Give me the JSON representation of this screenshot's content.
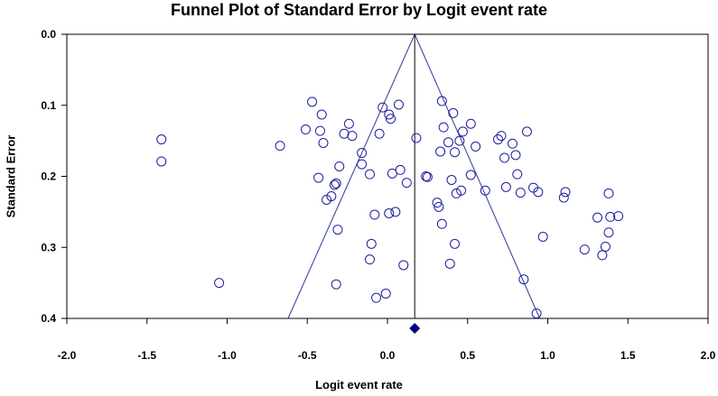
{
  "chart_data": {
    "type": "scatter",
    "title": "Funnel Plot of Standard Error by Logit event rate",
    "xlabel": "Logit event rate",
    "ylabel": "Standard Error",
    "xlim": [
      -2.0,
      2.0
    ],
    "ylim": [
      0.0,
      0.4
    ],
    "y_inverted": true,
    "x_ticks": [
      "-2.0",
      "-1.5",
      "-1.0",
      "-0.5",
      "0.0",
      "0.5",
      "1.0",
      "1.5",
      "2.0"
    ],
    "y_ticks": [
      "0.0",
      "0.1",
      "0.2",
      "0.3",
      "0.4"
    ],
    "grid": false,
    "colors": {
      "marker": "#1f1f9f",
      "lines": "#2e3a9e",
      "summary": "#000080",
      "axis": "#000000"
    },
    "summary_estimate": 0.17,
    "funnel": {
      "apex": [
        0.17,
        0.0
      ],
      "left_base": [
        -0.62,
        0.4
      ],
      "right_base": [
        0.95,
        0.4
      ]
    },
    "points": [
      {
        "x": -1.41,
        "y": 0.148
      },
      {
        "x": -1.41,
        "y": 0.179
      },
      {
        "x": -1.05,
        "y": 0.35
      },
      {
        "x": -0.67,
        "y": 0.157
      },
      {
        "x": -0.47,
        "y": 0.095
      },
      {
        "x": -0.51,
        "y": 0.134
      },
      {
        "x": -0.41,
        "y": 0.113
      },
      {
        "x": -0.42,
        "y": 0.136
      },
      {
        "x": -0.4,
        "y": 0.153
      },
      {
        "x": -0.43,
        "y": 0.202
      },
      {
        "x": -0.38,
        "y": 0.233
      },
      {
        "x": -0.35,
        "y": 0.228
      },
      {
        "x": -0.33,
        "y": 0.212
      },
      {
        "x": -0.32,
        "y": 0.21
      },
      {
        "x": -0.3,
        "y": 0.186
      },
      {
        "x": -0.31,
        "y": 0.275
      },
      {
        "x": -0.32,
        "y": 0.352
      },
      {
        "x": -0.27,
        "y": 0.14
      },
      {
        "x": -0.24,
        "y": 0.126
      },
      {
        "x": -0.22,
        "y": 0.143
      },
      {
        "x": -0.16,
        "y": 0.167
      },
      {
        "x": -0.16,
        "y": 0.183
      },
      {
        "x": -0.11,
        "y": 0.197
      },
      {
        "x": -0.1,
        "y": 0.295
      },
      {
        "x": -0.11,
        "y": 0.317
      },
      {
        "x": -0.07,
        "y": 0.371
      },
      {
        "x": -0.08,
        "y": 0.254
      },
      {
        "x": -0.05,
        "y": 0.14
      },
      {
        "x": -0.03,
        "y": 0.103
      },
      {
        "x": -0.01,
        "y": 0.365
      },
      {
        "x": 0.01,
        "y": 0.113
      },
      {
        "x": 0.02,
        "y": 0.119
      },
      {
        "x": 0.01,
        "y": 0.252
      },
      {
        "x": 0.03,
        "y": 0.196
      },
      {
        "x": 0.05,
        "y": 0.25
      },
      {
        "x": 0.07,
        "y": 0.099
      },
      {
        "x": 0.08,
        "y": 0.191
      },
      {
        "x": 0.1,
        "y": 0.325
      },
      {
        "x": 0.12,
        "y": 0.209
      },
      {
        "x": 0.18,
        "y": 0.146
      },
      {
        "x": 0.24,
        "y": 0.2
      },
      {
        "x": 0.25,
        "y": 0.201
      },
      {
        "x": 0.31,
        "y": 0.237
      },
      {
        "x": 0.32,
        "y": 0.243
      },
      {
        "x": 0.34,
        "y": 0.267
      },
      {
        "x": 0.33,
        "y": 0.165
      },
      {
        "x": 0.34,
        "y": 0.094
      },
      {
        "x": 0.35,
        "y": 0.131
      },
      {
        "x": 0.38,
        "y": 0.152
      },
      {
        "x": 0.39,
        "y": 0.323
      },
      {
        "x": 0.4,
        "y": 0.205
      },
      {
        "x": 0.41,
        "y": 0.111
      },
      {
        "x": 0.42,
        "y": 0.295
      },
      {
        "x": 0.42,
        "y": 0.166
      },
      {
        "x": 0.43,
        "y": 0.224
      },
      {
        "x": 0.45,
        "y": 0.15
      },
      {
        "x": 0.46,
        "y": 0.22
      },
      {
        "x": 0.47,
        "y": 0.137
      },
      {
        "x": 0.52,
        "y": 0.126
      },
      {
        "x": 0.52,
        "y": 0.198
      },
      {
        "x": 0.55,
        "y": 0.158
      },
      {
        "x": 0.61,
        "y": 0.22
      },
      {
        "x": 0.69,
        "y": 0.148
      },
      {
        "x": 0.71,
        "y": 0.143
      },
      {
        "x": 0.73,
        "y": 0.174
      },
      {
        "x": 0.74,
        "y": 0.215
      },
      {
        "x": 0.78,
        "y": 0.154
      },
      {
        "x": 0.8,
        "y": 0.17
      },
      {
        "x": 0.81,
        "y": 0.197
      },
      {
        "x": 0.83,
        "y": 0.223
      },
      {
        "x": 0.85,
        "y": 0.345
      },
      {
        "x": 0.87,
        "y": 0.137
      },
      {
        "x": 0.91,
        "y": 0.216
      },
      {
        "x": 0.94,
        "y": 0.222
      },
      {
        "x": 0.93,
        "y": 0.393
      },
      {
        "x": 0.97,
        "y": 0.285
      },
      {
        "x": 1.1,
        "y": 0.23
      },
      {
        "x": 1.11,
        "y": 0.222
      },
      {
        "x": 1.23,
        "y": 0.303
      },
      {
        "x": 1.31,
        "y": 0.258
      },
      {
        "x": 1.34,
        "y": 0.311
      },
      {
        "x": 1.36,
        "y": 0.299
      },
      {
        "x": 1.38,
        "y": 0.224
      },
      {
        "x": 1.38,
        "y": 0.279
      },
      {
        "x": 1.39,
        "y": 0.257
      },
      {
        "x": 1.44,
        "y": 0.256
      }
    ]
  }
}
